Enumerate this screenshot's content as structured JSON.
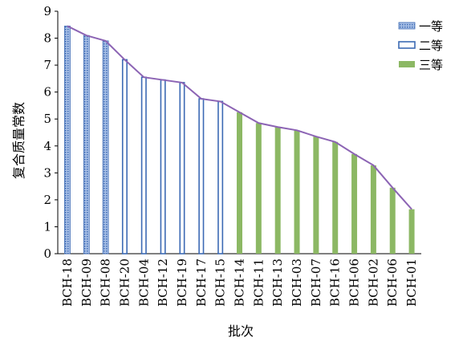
{
  "chart_data": {
    "type": "bar",
    "title": "",
    "xlabel": "批次",
    "ylabel": "复合质量常数",
    "ylim": [
      0,
      9
    ],
    "yticks": [
      0,
      1,
      2,
      3,
      4,
      5,
      6,
      7,
      8,
      9
    ],
    "grid": false,
    "legend_position": "top-right",
    "categories": [
      "BCH-18",
      "BCH-09",
      "BCH-08",
      "BCH-20",
      "BCH-04",
      "BCH-12",
      "BCH-19",
      "BCH-17",
      "BCH-15",
      "BCH-14",
      "BCH-11",
      "BCH-13",
      "BCH-03",
      "BCH-07",
      "BCH-16",
      "BCH-06",
      "BCH-02",
      "BCH-06",
      "BCH-01"
    ],
    "values": [
      8.45,
      8.1,
      7.9,
      7.2,
      6.55,
      6.45,
      6.35,
      5.75,
      5.65,
      5.25,
      4.85,
      4.7,
      4.58,
      4.35,
      4.15,
      3.7,
      3.28,
      2.45,
      1.65
    ],
    "grades": [
      "一等",
      "一等",
      "一等",
      "二等",
      "二等",
      "二等",
      "二等",
      "二等",
      "二等",
      "三等",
      "三等",
      "三等",
      "三等",
      "三等",
      "三等",
      "三等",
      "三等",
      "三等",
      "三等"
    ],
    "series": [
      {
        "name": "一等",
        "style": "dotted-blue"
      },
      {
        "name": "二等",
        "style": "outline-blue"
      },
      {
        "name": "三等",
        "style": "solid-green"
      }
    ],
    "line_color": "#8c64b4",
    "colors": {
      "blue": "#3c6ab4",
      "green": "#8cb864",
      "line": "#8c64b4"
    }
  }
}
